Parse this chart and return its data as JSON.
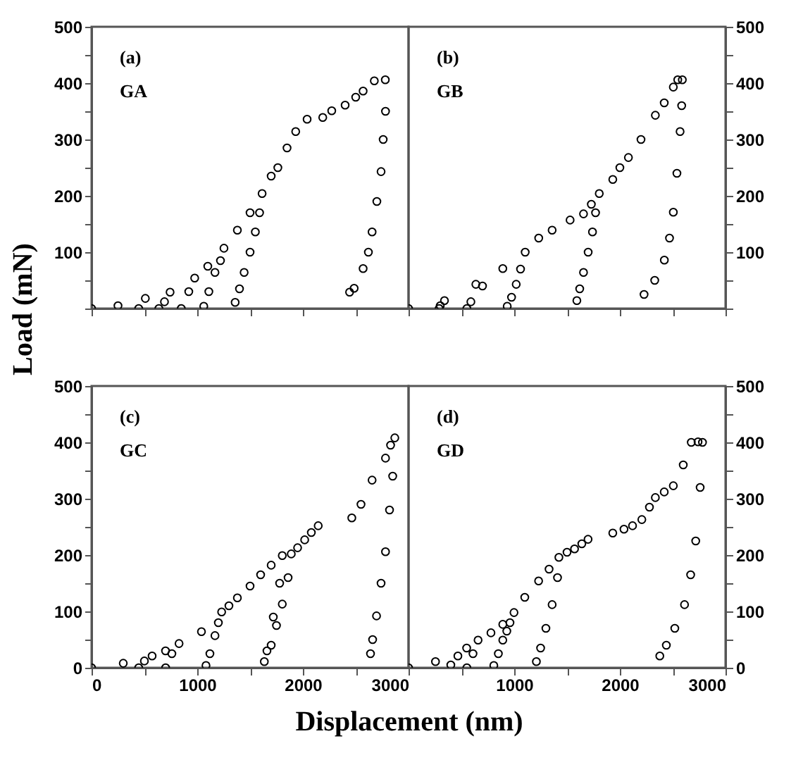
{
  "chart_data": [
    {
      "type": "scatter",
      "ylabel": "Load (mN)",
      "annotations": [
        "(a)",
        "GA"
      ],
      "marker": "circle",
      "tick_labels": "y",
      "xlim": [
        0,
        3000
      ],
      "xticks": [
        0,
        {
          "value": 500,
          "label": null
        },
        1000,
        {
          "value": 1500,
          "label": null
        },
        2000,
        {
          "value": 2500,
          "label": null
        },
        3000
      ],
      "ylim": [
        0,
        500
      ],
      "yticks": [
        {
          "value": 0,
          "label": null
        },
        {
          "value": 50,
          "label": null
        },
        100,
        {
          "value": 150,
          "label": null
        },
        200,
        {
          "value": 250,
          "label": null
        },
        300,
        {
          "value": 350,
          "label": null
        },
        400,
        {
          "value": 450,
          "label": null
        },
        500
      ],
      "series": [
        {
          "color": "#000000",
          "x": [
            0,
            250,
            509,
            743,
            976,
            1100,
            1253,
            1380,
            1500,
            1614,
            1700,
            1763,
            1850,
            1932,
            2040,
            2188,
            2273,
            2400,
            2500,
            2570,
            2676,
            2780,
            2782,
            2760,
            2740,
            2700,
            2655,
            2620,
            2570,
            2485,
            2442,
            1590,
            1550,
            1500,
            1444,
            1400,
            1359,
            1220,
            1168,
            1110,
            1062,
            920,
            849,
            690,
            637,
            446
          ],
          "values": [
            0,
            5,
            18,
            29,
            54,
            75,
            107,
            139,
            170,
            204,
            235,
            250,
            285,
            314,
            336,
            339,
            351,
            361,
            375,
            386,
            404,
            406,
            350,
            300,
            243,
            190,
            136,
            100,
            71,
            36,
            29,
            170,
            136,
            100,
            64,
            35,
            11,
            85,
            64,
            30,
            4,
            30,
            0,
            12,
            0,
            0
          ]
        }
      ]
    },
    {
      "type": "scatter",
      "annotations": [
        "(b)",
        "GB"
      ],
      "marker": "circle",
      "tick_labels": "y",
      "xlim": [
        0,
        3000
      ],
      "xticks": [
        0,
        {
          "value": 500,
          "label": null
        },
        1000,
        {
          "value": 1500,
          "label": null
        },
        2000,
        {
          "value": 2500,
          "label": null
        },
        3000
      ],
      "ylim": [
        0,
        500
      ],
      "yticks": [
        {
          "value": 0,
          "label": null
        },
        {
          "value": 50,
          "label": null
        },
        100,
        {
          "value": 150,
          "label": null
        },
        200,
        {
          "value": 250,
          "label": null
        },
        300,
        {
          "value": 350,
          "label": null
        },
        400,
        {
          "value": 450,
          "label": null
        },
        500
      ],
      "series": [
        {
          "color": "#000000",
          "x": [
            0,
            340,
            637,
            892,
            1104,
            1232,
            1359,
            1529,
            1656,
            1730,
            1805,
            1933,
            2000,
            2081,
            2200,
            2336,
            2420,
            2506,
            2548,
            2591,
            2585,
            2570,
            2540,
            2506,
            2470,
            2421,
            2330,
            2229,
            1770,
            1741,
            1700,
            1656,
            1620,
            1593,
            1060,
            1019,
            975,
            934,
            700,
            590,
            552,
            300,
            290
          ],
          "values": [
            0,
            14,
            43,
            71,
            100,
            125,
            139,
            157,
            168,
            185,
            204,
            229,
            250,
            268,
            300,
            343,
            365,
            393,
            406,
            406,
            360,
            314,
            240,
            171,
            125,
            86,
            50,
            25,
            170,
            136,
            100,
            64,
            35,
            14,
            70,
            43,
            20,
            4,
            40,
            12,
            0,
            5,
            0
          ]
        }
      ]
    },
    {
      "type": "scatter",
      "xlabel": "Displacement (nm)",
      "annotations": [
        "(c)",
        "GC"
      ],
      "marker": "circle",
      "xlim": [
        0,
        3000
      ],
      "xticks": [
        0,
        {
          "value": 500,
          "label": null
        },
        1000,
        {
          "value": 1500,
          "label": null
        },
        2000,
        {
          "value": 2500,
          "label": null
        },
        3000
      ],
      "ylim": [
        0,
        500
      ],
      "yticks": [
        0,
        {
          "value": 50,
          "label": null
        },
        100,
        {
          "value": 150,
          "label": null
        },
        200,
        {
          "value": 250,
          "label": null
        },
        300,
        {
          "value": 350,
          "label": null
        },
        400,
        {
          "value": 450,
          "label": null
        },
        500
      ],
      "series": [
        {
          "color": "#000000",
          "x": [
            0,
            300,
            573,
            700,
            828,
            1040,
            1231,
            1300,
            1380,
            1500,
            1600,
            1700,
            1805,
            1890,
            1950,
            2017,
            2080,
            2145,
            2463,
            2550,
            2655,
            2782,
            2830,
            2870,
            2850,
            2820,
            2782,
            2740,
            2697,
            2660,
            2640,
            1860,
            1805,
            1750,
            1700,
            1635,
            1780,
            1720,
            1660,
            1200,
            1168,
            1120,
            1083,
            760,
            701,
            500,
            446
          ],
          "values": [
            0,
            8,
            21,
            30,
            43,
            64,
            99,
            110,
            124,
            145,
            165,
            182,
            199,
            202,
            213,
            227,
            240,
            252,
            266,
            290,
            333,
            372,
            395,
            408,
            340,
            280,
            206,
            150,
            92,
            50,
            25,
            160,
            113,
            75,
            40,
            11,
            150,
            90,
            30,
            80,
            57,
            25,
            4,
            25,
            0,
            12,
            0
          ]
        }
      ]
    },
    {
      "type": "scatter",
      "annotations": [
        "(d)",
        "GD"
      ],
      "marker": "circle",
      "xlim": [
        0,
        3000
      ],
      "xticks": [
        {
          "value": 0,
          "label": null
        },
        {
          "value": 500,
          "label": null
        },
        1000,
        {
          "value": 1500,
          "label": null
        },
        2000,
        {
          "value": 2500,
          "label": null
        },
        3000
      ],
      "ylim": [
        0,
        500
      ],
      "yticks": [
        0,
        {
          "value": 50,
          "label": null
        },
        100,
        {
          "value": 150,
          "label": null
        },
        200,
        {
          "value": 250,
          "label": null
        },
        300,
        {
          "value": 350,
          "label": null
        },
        400,
        {
          "value": 450,
          "label": null
        },
        500
      ],
      "series": [
        {
          "color": "#000000",
          "x": [
            0,
            255,
            467,
            550,
            658,
            780,
            892,
            998,
            1100,
            1231,
            1330,
            1423,
            1500,
            1571,
            1640,
            1699,
            1933,
            2039,
            2120,
            2208,
            2280,
            2336,
            2420,
            2506,
            2600,
            2676,
            2740,
            2782,
            2760,
            2718,
            2670,
            2612,
            2520,
            2440,
            2378,
            1410,
            1359,
            1300,
            1250,
            1210,
            960,
            930,
            892,
            850,
            807,
            610,
            552,
            400
          ],
          "values": [
            0,
            11,
            21,
            35,
            49,
            62,
            77,
            98,
            125,
            154,
            175,
            196,
            205,
            211,
            220,
            228,
            239,
            246,
            252,
            263,
            285,
            302,
            312,
            323,
            360,
            400,
            401,
            400,
            320,
            225,
            165,
            112,
            70,
            40,
            21,
            160,
            112,
            70,
            35,
            11,
            80,
            65,
            49,
            25,
            4,
            25,
            0,
            5
          ]
        }
      ]
    }
  ]
}
